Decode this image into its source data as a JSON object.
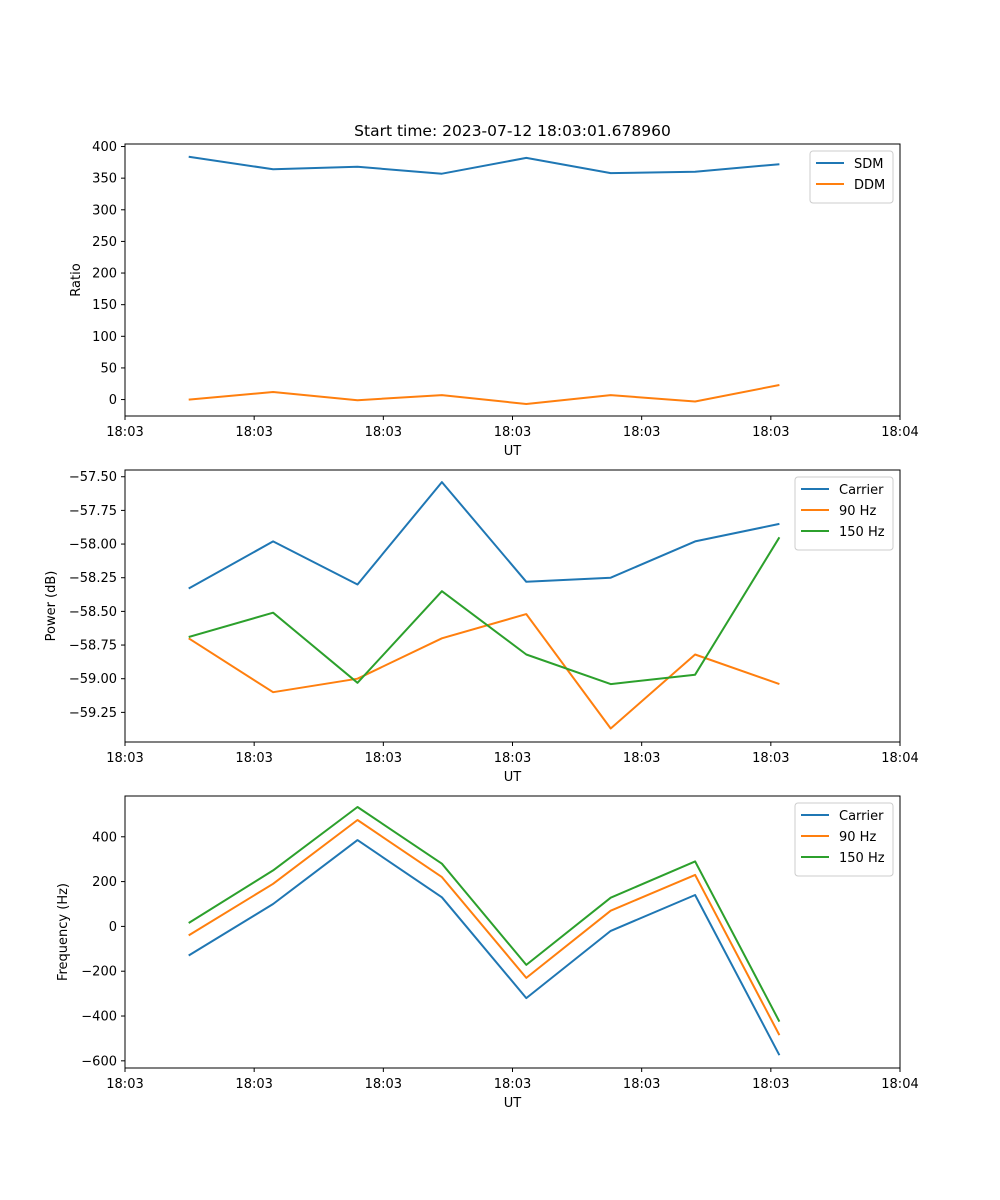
{
  "figure": {
    "title": "Start time: 2023-07-12 18:03:01.678960"
  },
  "chart_data": [
    {
      "type": "line",
      "xlabel": "UT",
      "ylabel": "Ratio",
      "xlim": [
        0,
        9
      ],
      "ylim": [
        -26,
        404
      ],
      "x_tick_values": [
        0,
        1.5,
        3,
        4.5,
        6,
        7.5,
        9
      ],
      "x_tick_labels": [
        "18:03",
        "18:03",
        "18:03",
        "18:03",
        "18:03",
        "18:03",
        "18:04"
      ],
      "y_ticks": [
        0,
        50,
        100,
        150,
        200,
        250,
        300,
        350,
        400
      ],
      "y_tick_labels": [
        "0",
        "50",
        "100",
        "150",
        "200",
        "250",
        "300",
        "350",
        "400"
      ],
      "x": [
        0.74,
        1.72,
        2.7,
        3.68,
        4.66,
        5.64,
        6.62,
        7.6
      ],
      "legend_position": "top-right",
      "series": [
        {
          "name": "SDM",
          "color": "#1f77b4",
          "values": [
            384,
            364,
            368,
            357,
            382,
            358,
            360,
            372
          ]
        },
        {
          "name": "DDM",
          "color": "#ff7f0e",
          "values": [
            0,
            12,
            -1,
            7,
            -7,
            7,
            -3,
            23
          ]
        }
      ]
    },
    {
      "type": "line",
      "xlabel": "UT",
      "ylabel": "Power (dB)",
      "xlim": [
        0,
        9
      ],
      "ylim": [
        -59.47,
        -57.45
      ],
      "x_tick_values": [
        0,
        1.5,
        3,
        4.5,
        6,
        7.5,
        9
      ],
      "x_tick_labels": [
        "18:03",
        "18:03",
        "18:03",
        "18:03",
        "18:03",
        "18:03",
        "18:04"
      ],
      "y_ticks": [
        -59.25,
        -59.0,
        -58.75,
        -58.5,
        -58.25,
        -58.0,
        -57.75,
        -57.5
      ],
      "y_tick_labels": [
        "−59.25",
        "−59.00",
        "−58.75",
        "−58.50",
        "−58.25",
        "−58.00",
        "−57.75",
        "−57.50"
      ],
      "x": [
        0.74,
        1.72,
        2.7,
        3.68,
        4.66,
        5.64,
        6.62,
        7.6
      ],
      "legend_position": "top-right",
      "series": [
        {
          "name": "Carrier",
          "color": "#1f77b4",
          "values": [
            -58.33,
            -57.98,
            -58.3,
            -57.54,
            -58.28,
            -58.25,
            -57.98,
            -57.85
          ]
        },
        {
          "name": "90 Hz",
          "color": "#ff7f0e",
          "values": [
            -58.7,
            -59.1,
            -59.0,
            -58.7,
            -58.52,
            -59.37,
            -58.82,
            -59.04
          ]
        },
        {
          "name": "150 Hz",
          "color": "#2ca02c",
          "values": [
            -58.69,
            -58.51,
            -59.03,
            -58.35,
            -58.82,
            -59.04,
            -58.97,
            -57.95
          ]
        }
      ]
    },
    {
      "type": "line",
      "xlabel": "UT",
      "ylabel": "Frequency (Hz)",
      "xlim": [
        0,
        9
      ],
      "ylim": [
        -632,
        582
      ],
      "x_tick_values": [
        0,
        1.5,
        3,
        4.5,
        6,
        7.5,
        9
      ],
      "x_tick_labels": [
        "18:03",
        "18:03",
        "18:03",
        "18:03",
        "18:03",
        "18:03",
        "18:04"
      ],
      "y_ticks": [
        -600,
        -400,
        -200,
        0,
        200,
        400
      ],
      "y_tick_labels": [
        "−600",
        "−400",
        "−200",
        "0",
        "200",
        "400"
      ],
      "x": [
        0.74,
        1.72,
        2.7,
        3.68,
        4.66,
        5.64,
        6.62,
        7.6
      ],
      "legend_position": "top-right",
      "series": [
        {
          "name": "Carrier",
          "color": "#1f77b4",
          "values": [
            -130,
            100,
            385,
            130,
            -320,
            -20,
            140,
            -575
          ]
        },
        {
          "name": "90 Hz",
          "color": "#ff7f0e",
          "values": [
            -40,
            190,
            475,
            220,
            -230,
            70,
            230,
            -485
          ]
        },
        {
          "name": "150 Hz",
          "color": "#2ca02c",
          "values": [
            15,
            250,
            533,
            280,
            -172,
            128,
            290,
            -425
          ]
        }
      ]
    }
  ]
}
